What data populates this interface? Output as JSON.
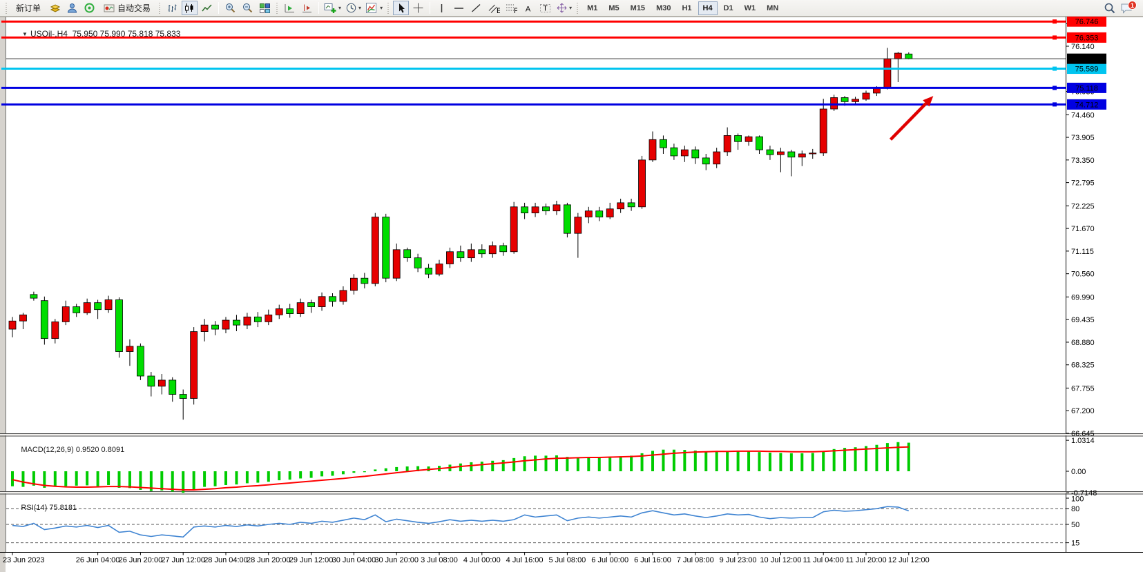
{
  "glyphs": {
    "dropdown": "▾",
    "triangle": "▼"
  },
  "toolbar": {
    "new_order_label": "新订单",
    "autotrading_label": "自动交易",
    "icon_letters": {
      "channel": "E",
      "fibonacci": "F",
      "text": "A",
      "label": "T"
    },
    "timeframes": [
      "M1",
      "M5",
      "M15",
      "M30",
      "H1",
      "H4",
      "D1",
      "W1",
      "MN"
    ],
    "active_timeframe": "H4",
    "notification_count": "1"
  },
  "chart_header": {
    "symbol_period": "USOil-,H4",
    "ohlc": "75.950 75.990 75.818 75.833"
  },
  "price_axis": {
    "ticks": [
      "76.695",
      "76.140",
      "75.030",
      "74.460",
      "73.905",
      "73.350",
      "72.795",
      "72.225",
      "71.670",
      "71.115",
      "70.560",
      "69.990",
      "69.435",
      "68.880",
      "68.325",
      "67.755",
      "67.200",
      "66.645"
    ]
  },
  "time_axis": {
    "labels": [
      {
        "text": "23 Jun 2023",
        "bar": 0
      },
      {
        "text": "26 Jun 04:00",
        "bar": 8
      },
      {
        "text": "26 Jun 20:00",
        "bar": 12
      },
      {
        "text": "27 Jun 12:00",
        "bar": 16
      },
      {
        "text": "28 Jun 04:00",
        "bar": 20
      },
      {
        "text": "28 Jun 20:00",
        "bar": 24
      },
      {
        "text": "29 Jun 12:00",
        "bar": 28
      },
      {
        "text": "30 Jun 04:00",
        "bar": 32
      },
      {
        "text": "30 Jun 20:00",
        "bar": 36
      },
      {
        "text": "3 Jul 08:00",
        "bar": 40
      },
      {
        "text": "4 Jul 00:00",
        "bar": 44
      },
      {
        "text": "4 Jul 16:00",
        "bar": 48
      },
      {
        "text": "5 Jul 08:00",
        "bar": 52
      },
      {
        "text": "6 Jul 00:00",
        "bar": 56
      },
      {
        "text": "6 Jul 16:00",
        "bar": 60
      },
      {
        "text": "7 Jul 08:00",
        "bar": 64
      },
      {
        "text": "9 Jul 23:00",
        "bar": 68
      },
      {
        "text": "10 Jul 12:00",
        "bar": 72
      },
      {
        "text": "11 Jul 04:00",
        "bar": 76
      },
      {
        "text": "11 Jul 20:00",
        "bar": 80
      },
      {
        "text": "12 Jul 12:00",
        "bar": 84
      }
    ]
  },
  "objects": {
    "hlines": [
      {
        "price": 76.746,
        "label": "76.746",
        "color": "#ff0000",
        "width": 3
      },
      {
        "price": 76.353,
        "label": "76.353",
        "color": "#ff0000",
        "width": 3
      },
      {
        "price": 75.589,
        "label": "75.589",
        "color": "#00c5f0",
        "width": 3
      },
      {
        "price": 75.118,
        "label": "75.118",
        "color": "#0000e1",
        "width": 3
      },
      {
        "price": 74.712,
        "label": "74.712",
        "color": "#0000e1",
        "width": 3
      }
    ],
    "arrow": {
      "color": "#e00000",
      "from": {
        "bar": 82.3,
        "price": 73.85
      },
      "to": {
        "bar": 86.3,
        "price": 74.92
      }
    }
  },
  "current_price": {
    "label": "75.833",
    "value": 75.833,
    "color": "#000000"
  },
  "indicators": {
    "macd": {
      "name": "MACD(12,26,9)",
      "value": "0.9520",
      "signal": "0.8091",
      "axis_ticks": [
        "1.0314",
        "0.00",
        "-0.7148"
      ],
      "histogram_color": "#00cc00",
      "signal_color": "#ff0000"
    },
    "rsi": {
      "name": "RSI(14)",
      "value": "75.8181",
      "axis_ticks": [
        "100",
        "80",
        "50",
        "15"
      ],
      "levels": [
        80,
        50,
        15
      ],
      "line_color": "#3f84d2"
    }
  },
  "chart_data": {
    "type": "candlestick",
    "symbol": "USOil",
    "period": "H4",
    "up_color": "#e60000",
    "down_color": "#00dd00",
    "wick_color": "#000000",
    "bars": [
      [
        69.2,
        69.5,
        69.0,
        69.4
      ],
      [
        69.4,
        69.6,
        69.2,
        69.55
      ],
      [
        70.05,
        70.12,
        69.9,
        69.96
      ],
      [
        69.9,
        70.0,
        68.82,
        68.97
      ],
      [
        68.97,
        69.45,
        68.85,
        69.38
      ],
      [
        69.38,
        69.9,
        69.3,
        69.75
      ],
      [
        69.75,
        69.82,
        69.5,
        69.6
      ],
      [
        69.6,
        69.95,
        69.55,
        69.85
      ],
      [
        69.85,
        69.92,
        69.45,
        69.68
      ],
      [
        69.68,
        70.02,
        69.6,
        69.92
      ],
      [
        69.92,
        69.98,
        68.5,
        68.65
      ],
      [
        68.65,
        68.95,
        68.3,
        68.78
      ],
      [
        68.78,
        68.85,
        67.95,
        68.05
      ],
      [
        68.05,
        68.15,
        67.55,
        67.8
      ],
      [
        67.8,
        68.1,
        67.6,
        67.95
      ],
      [
        67.95,
        68.02,
        67.42,
        67.6
      ],
      [
        67.6,
        67.72,
        66.98,
        67.5
      ],
      [
        67.5,
        69.25,
        67.35,
        69.14
      ],
      [
        69.14,
        69.45,
        68.9,
        69.3
      ],
      [
        69.3,
        69.4,
        69.05,
        69.2
      ],
      [
        69.2,
        69.5,
        69.1,
        69.42
      ],
      [
        69.42,
        69.55,
        69.15,
        69.3
      ],
      [
        69.3,
        69.6,
        69.2,
        69.5
      ],
      [
        69.5,
        69.62,
        69.25,
        69.38
      ],
      [
        69.38,
        69.68,
        69.3,
        69.55
      ],
      [
        69.55,
        69.8,
        69.45,
        69.7
      ],
      [
        69.7,
        69.82,
        69.48,
        69.58
      ],
      [
        69.58,
        69.95,
        69.5,
        69.85
      ],
      [
        69.85,
        69.92,
        69.6,
        69.75
      ],
      [
        69.75,
        70.1,
        69.65,
        70.0
      ],
      [
        70.0,
        70.08,
        69.75,
        69.88
      ],
      [
        69.88,
        70.25,
        69.8,
        70.15
      ],
      [
        70.15,
        70.55,
        70.05,
        70.45
      ],
      [
        70.45,
        70.58,
        70.2,
        70.32
      ],
      [
        70.32,
        72.05,
        70.25,
        71.95
      ],
      [
        71.95,
        72.03,
        70.35,
        70.45
      ],
      [
        70.45,
        71.3,
        70.38,
        71.15
      ],
      [
        71.15,
        71.2,
        70.85,
        70.95
      ],
      [
        70.95,
        71.05,
        70.6,
        70.7
      ],
      [
        70.7,
        70.8,
        70.45,
        70.55
      ],
      [
        70.55,
        70.9,
        70.5,
        70.8
      ],
      [
        70.8,
        71.2,
        70.7,
        71.1
      ],
      [
        71.1,
        71.25,
        70.85,
        70.95
      ],
      [
        70.95,
        71.3,
        70.85,
        71.15
      ],
      [
        71.15,
        71.28,
        70.95,
        71.05
      ],
      [
        71.05,
        71.35,
        70.95,
        71.25
      ],
      [
        71.25,
        71.32,
        71.0,
        71.1
      ],
      [
        71.1,
        72.32,
        71.05,
        72.2
      ],
      [
        72.2,
        72.3,
        71.9,
        72.05
      ],
      [
        72.05,
        72.3,
        71.95,
        72.2
      ],
      [
        72.2,
        72.28,
        72.0,
        72.1
      ],
      [
        72.1,
        72.35,
        72.0,
        72.25
      ],
      [
        72.25,
        72.3,
        71.45,
        71.55
      ],
      [
        71.55,
        72.05,
        70.95,
        71.95
      ],
      [
        71.95,
        72.2,
        71.8,
        72.1
      ],
      [
        72.1,
        72.2,
        71.85,
        71.95
      ],
      [
        71.95,
        72.3,
        71.9,
        72.15
      ],
      [
        72.15,
        72.4,
        72.05,
        72.3
      ],
      [
        72.3,
        72.4,
        72.1,
        72.2
      ],
      [
        72.2,
        73.45,
        72.15,
        73.35
      ],
      [
        73.35,
        74.05,
        73.3,
        73.85
      ],
      [
        73.85,
        73.95,
        73.5,
        73.65
      ],
      [
        73.65,
        73.75,
        73.35,
        73.45
      ],
      [
        73.45,
        73.7,
        73.3,
        73.6
      ],
      [
        73.6,
        73.68,
        73.25,
        73.4
      ],
      [
        73.4,
        73.5,
        73.1,
        73.25
      ],
      [
        73.25,
        73.65,
        73.15,
        73.55
      ],
      [
        73.55,
        74.15,
        73.45,
        73.95
      ],
      [
        73.95,
        74.0,
        73.6,
        73.8
      ],
      [
        73.8,
        73.95,
        73.7,
        73.92
      ],
      [
        73.92,
        73.95,
        73.5,
        73.6
      ],
      [
        73.6,
        73.7,
        73.35,
        73.48
      ],
      [
        73.48,
        73.65,
        73.05,
        73.55
      ],
      [
        73.55,
        73.6,
        72.95,
        73.42
      ],
      [
        73.42,
        73.58,
        73.2,
        73.5
      ],
      [
        73.5,
        73.62,
        73.38,
        73.52
      ],
      [
        73.52,
        74.85,
        73.45,
        74.6
      ],
      [
        74.6,
        74.95,
        74.55,
        74.88
      ],
      [
        74.88,
        74.92,
        74.68,
        74.78
      ],
      [
        74.78,
        74.9,
        74.7,
        74.84
      ],
      [
        74.84,
        75.05,
        74.8,
        74.99
      ],
      [
        74.99,
        75.16,
        74.92,
        75.11
      ],
      [
        75.11,
        76.1,
        75.08,
        75.83
      ],
      [
        75.83,
        76.0,
        75.26,
        75.97
      ],
      [
        75.95,
        75.99,
        75.818,
        75.833
      ]
    ],
    "macd_histogram": [
      -0.5,
      -0.52,
      -0.48,
      -0.55,
      -0.52,
      -0.5,
      -0.48,
      -0.47,
      -0.5,
      -0.46,
      -0.55,
      -0.56,
      -0.62,
      -0.66,
      -0.64,
      -0.68,
      -0.715,
      -0.6,
      -0.52,
      -0.5,
      -0.46,
      -0.44,
      -0.4,
      -0.38,
      -0.35,
      -0.3,
      -0.28,
      -0.24,
      -0.22,
      -0.17,
      -0.15,
      -0.1,
      -0.05,
      -0.03,
      0.06,
      0.1,
      0.14,
      0.16,
      0.17,
      0.16,
      0.18,
      0.22,
      0.26,
      0.3,
      0.32,
      0.35,
      0.37,
      0.44,
      0.5,
      0.52,
      0.52,
      0.53,
      0.48,
      0.46,
      0.47,
      0.46,
      0.47,
      0.5,
      0.52,
      0.6,
      0.68,
      0.72,
      0.72,
      0.71,
      0.69,
      0.66,
      0.65,
      0.67,
      0.68,
      0.67,
      0.64,
      0.62,
      0.61,
      0.6,
      0.6,
      0.61,
      0.68,
      0.74,
      0.78,
      0.8,
      0.84,
      0.88,
      0.94,
      0.97,
      0.952
    ],
    "macd_signal": [
      -0.28,
      -0.36,
      -0.42,
      -0.47,
      -0.5,
      -0.52,
      -0.53,
      -0.53,
      -0.52,
      -0.51,
      -0.51,
      -0.52,
      -0.54,
      -0.56,
      -0.58,
      -0.6,
      -0.62,
      -0.62,
      -0.6,
      -0.58,
      -0.55,
      -0.53,
      -0.5,
      -0.48,
      -0.45,
      -0.42,
      -0.39,
      -0.36,
      -0.33,
      -0.3,
      -0.27,
      -0.24,
      -0.2,
      -0.17,
      -0.13,
      -0.09,
      -0.05,
      -0.01,
      0.03,
      0.06,
      0.09,
      0.12,
      0.16,
      0.19,
      0.22,
      0.25,
      0.28,
      0.31,
      0.35,
      0.38,
      0.41,
      0.43,
      0.44,
      0.45,
      0.46,
      0.46,
      0.47,
      0.48,
      0.49,
      0.51,
      0.54,
      0.57,
      0.6,
      0.62,
      0.64,
      0.65,
      0.66,
      0.66,
      0.67,
      0.67,
      0.67,
      0.66,
      0.66,
      0.65,
      0.65,
      0.65,
      0.66,
      0.68,
      0.7,
      0.72,
      0.74,
      0.76,
      0.78,
      0.8,
      0.8091
    ],
    "rsi": [
      48,
      46,
      52,
      40,
      43,
      47,
      45,
      48,
      44,
      48,
      35,
      37,
      30,
      27,
      30,
      28,
      26,
      45,
      47,
      45,
      48,
      46,
      49,
      47,
      50,
      52,
      50,
      54,
      52,
      56,
      54,
      58,
      62,
      59,
      68,
      55,
      60,
      57,
      54,
      52,
      55,
      59,
      56,
      58,
      56,
      58,
      56,
      59,
      68,
      64,
      66,
      68,
      57,
      62,
      64,
      62,
      64,
      66,
      64,
      72,
      76,
      72,
      68,
      70,
      66,
      63,
      66,
      70,
      68,
      69,
      64,
      61,
      63,
      62,
      63,
      63,
      74,
      77,
      75,
      76,
      78,
      80,
      84,
      83,
      75.8
    ]
  }
}
